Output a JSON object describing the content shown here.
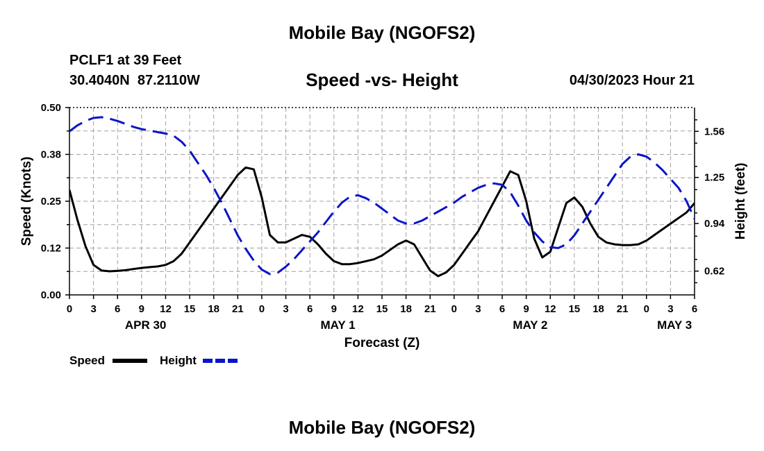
{
  "header": {
    "title": "Mobile Bay (NGOFS2)",
    "station": "PCLF1 at 39 Feet",
    "coords": "30.4040N  87.2110W",
    "subtitle": "Speed -vs- Height",
    "datetime": "04/30/2023 Hour 21"
  },
  "footer": {
    "title": "Mobile Bay (NGOFS2)"
  },
  "colors": {
    "speed": "#000000",
    "height": "#0a14c8",
    "grid": "#a0a0a0"
  },
  "chart_data": {
    "type": "line",
    "title": "Speed -vs- Height",
    "xlabel": "Forecast (Z)",
    "ylabel": "Speed (Knots)",
    "y2label": "Height (feet)",
    "x_range_hours": [
      0,
      78
    ],
    "x_tick_labels": [
      "0",
      "3",
      "6",
      "9",
      "12",
      "15",
      "18",
      "21",
      "0",
      "3",
      "6",
      "9",
      "12",
      "15",
      "18",
      "21",
      "0",
      "3",
      "6",
      "9",
      "12",
      "15",
      "18",
      "21",
      "0",
      "3",
      "6"
    ],
    "date_labels": [
      {
        "label": "APR 30",
        "hour": 9.5
      },
      {
        "label": "MAY 1",
        "hour": 33.5
      },
      {
        "label": "MAY 2",
        "hour": 57.5
      },
      {
        "label": "MAY 3",
        "hour": 75.5
      }
    ],
    "ylim": [
      0,
      0.5
    ],
    "y_tick_labels": [
      "0.00",
      "0.12",
      "0.25",
      "0.38",
      "0.50"
    ],
    "y2lim": [
      0.46,
      1.72
    ],
    "y2_tick_labels": [
      "0.62",
      "0.94",
      "1.25",
      "1.56"
    ],
    "legend": {
      "speed": "Speed",
      "height": "Height"
    },
    "series": [
      {
        "name": "Speed",
        "axis": "left",
        "style": "solid",
        "x": [
          0,
          1,
          2,
          3,
          4,
          5,
          6,
          7,
          8,
          9,
          10,
          11,
          12,
          13,
          14,
          15,
          16,
          17,
          18,
          19,
          20,
          21,
          22,
          23,
          24,
          25,
          26,
          27,
          28,
          29,
          30,
          31,
          32,
          33,
          34,
          35,
          36,
          37,
          38,
          39,
          40,
          41,
          42,
          43,
          44,
          45,
          46,
          47,
          48,
          49,
          50,
          51,
          52,
          53,
          54,
          55,
          56,
          57,
          58,
          59,
          60,
          61,
          62,
          63,
          64,
          65,
          66,
          67,
          68,
          69,
          70,
          71,
          72,
          73,
          74,
          75,
          76,
          77,
          78
        ],
        "values": [
          0.28,
          0.2,
          0.13,
          0.08,
          0.065,
          0.063,
          0.064,
          0.066,
          0.069,
          0.072,
          0.074,
          0.076,
          0.08,
          0.09,
          0.11,
          0.14,
          0.17,
          0.2,
          0.23,
          0.26,
          0.29,
          0.32,
          0.34,
          0.335,
          0.26,
          0.16,
          0.14,
          0.14,
          0.15,
          0.16,
          0.155,
          0.135,
          0.11,
          0.09,
          0.082,
          0.082,
          0.085,
          0.09,
          0.095,
          0.105,
          0.12,
          0.135,
          0.145,
          0.135,
          0.1,
          0.065,
          0.05,
          0.06,
          0.08,
          0.11,
          0.14,
          0.17,
          0.21,
          0.25,
          0.29,
          0.33,
          0.32,
          0.25,
          0.15,
          0.1,
          0.115,
          0.18,
          0.245,
          0.26,
          0.235,
          0.19,
          0.155,
          0.14,
          0.135,
          0.133,
          0.133,
          0.135,
          0.145,
          0.16,
          0.175,
          0.19,
          0.205,
          0.22,
          0.245
        ]
      },
      {
        "name": "Height",
        "axis": "right",
        "style": "dashed",
        "x": [
          0,
          1,
          2,
          3,
          4,
          5,
          6,
          7,
          8,
          9,
          10,
          11,
          12,
          13,
          14,
          15,
          16,
          17,
          18,
          19,
          20,
          21,
          22,
          23,
          24,
          25,
          26,
          27,
          28,
          29,
          30,
          31,
          32,
          33,
          34,
          35,
          36,
          37,
          38,
          39,
          40,
          41,
          42,
          43,
          44,
          45,
          46,
          47,
          48,
          49,
          50,
          51,
          52,
          53,
          54,
          55,
          56,
          57,
          58,
          59,
          60,
          61,
          62,
          63,
          64,
          65,
          66,
          67,
          68,
          69,
          70,
          71,
          72,
          73,
          74,
          75,
          76,
          77,
          78
        ],
        "values": [
          1.56,
          1.6,
          1.63,
          1.65,
          1.655,
          1.645,
          1.63,
          1.61,
          1.59,
          1.575,
          1.565,
          1.555,
          1.545,
          1.53,
          1.49,
          1.43,
          1.35,
          1.27,
          1.18,
          1.08,
          0.97,
          0.86,
          0.77,
          0.69,
          0.63,
          0.6,
          0.61,
          0.65,
          0.7,
          0.76,
          0.82,
          0.88,
          0.95,
          1.02,
          1.08,
          1.12,
          1.13,
          1.11,
          1.08,
          1.04,
          1.0,
          0.96,
          0.94,
          0.94,
          0.96,
          0.99,
          1.02,
          1.05,
          1.08,
          1.12,
          1.15,
          1.18,
          1.2,
          1.21,
          1.2,
          1.15,
          1.06,
          0.96,
          0.88,
          0.82,
          0.78,
          0.775,
          0.8,
          0.86,
          0.94,
          1.02,
          1.1,
          1.18,
          1.26,
          1.34,
          1.39,
          1.405,
          1.39,
          1.35,
          1.3,
          1.24,
          1.18,
          1.09,
          0.97
        ]
      }
    ]
  }
}
